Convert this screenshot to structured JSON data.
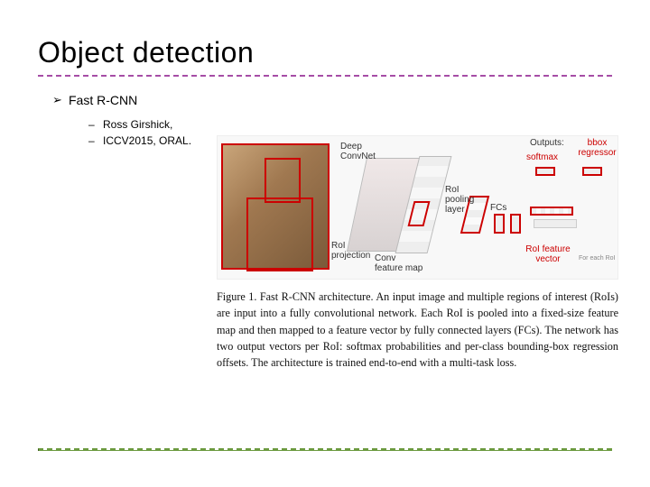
{
  "title": "Object detection",
  "bullet_main": "Fast R-CNN",
  "subbullets": [
    "Ross Girshick,",
    "ICCV2015, ORAL."
  ],
  "dash_color_top": "#a64da6",
  "dash_color_bottom": "#6b9a3f",
  "colors": {
    "accent_red": "#c00000",
    "text": "#000000",
    "caption_text": "#111111",
    "background": "#ffffff"
  },
  "diagram": {
    "labels": {
      "deep_convnet": "Deep\nConvNet",
      "roi_projection": "RoI\nprojection",
      "conv_feature_map": "Conv\nfeature map",
      "roi_pooling_layer": "RoI\npooling\nlayer",
      "fcs": "FCs",
      "roi_feature_vector": "RoI feature\nvector",
      "outputs": "Outputs:",
      "softmax": "softmax",
      "bbox_regressor": "bbox\nregressor",
      "for_each_roi": "For each RoI"
    }
  },
  "caption": "Figure 1. Fast R-CNN architecture. An input image and multiple regions of interest (RoIs) are input into a fully convolutional network. Each RoI is pooled into a fixed-size feature map and then mapped to a feature vector by fully connected layers (FCs). The network has two output vectors per RoI: softmax probabilities and per-class bounding-box regression offsets. The architecture is trained end-to-end with a multi-task loss."
}
